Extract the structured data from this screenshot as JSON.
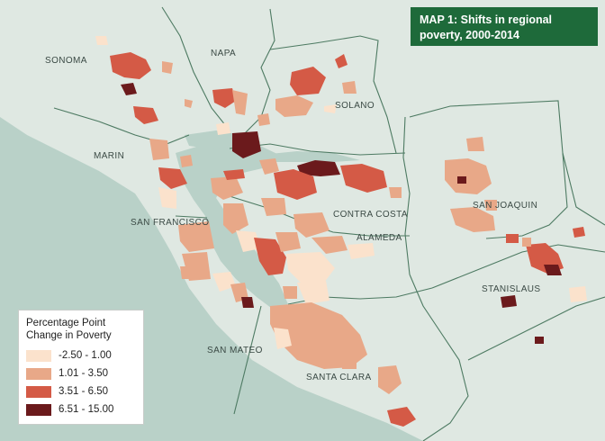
{
  "title": "MAP 1: Shifts in regional poverty, 2000-2014",
  "colors": {
    "water": "#b9d1c8",
    "land": "#dfe8e2",
    "county_boundary": "#4d7a62",
    "title_background": "#1e6a3a"
  },
  "counties": [
    {
      "key": "sonoma",
      "label": "SONOMA"
    },
    {
      "key": "napa",
      "label": "NAPA"
    },
    {
      "key": "solano",
      "label": "SOLANO"
    },
    {
      "key": "marin",
      "label": "MARIN"
    },
    {
      "key": "san_francisco",
      "label": "SAN FRANCISCO"
    },
    {
      "key": "contra_costa",
      "label": "CONTRA COSTA"
    },
    {
      "key": "alameda",
      "label": "ALAMEDA"
    },
    {
      "key": "san_joaquin",
      "label": "SAN JOAQUIN"
    },
    {
      "key": "stanislaus",
      "label": "STANISLAUS"
    },
    {
      "key": "san_mateo",
      "label": "SAN MATEO"
    },
    {
      "key": "santa_clara",
      "label": "SANTA CLARA"
    }
  ],
  "legend": {
    "title": "Percentage Point Change in Poverty",
    "items": [
      {
        "label": "-2.50 - 1.00",
        "color": "#fbe2cc"
      },
      {
        "label": "1.01 - 3.50",
        "color": "#e8a888"
      },
      {
        "label": "3.51 - 6.50",
        "color": "#d45a46"
      },
      {
        "label": "6.51 - 15.00",
        "color": "#6b1a1c"
      }
    ]
  }
}
